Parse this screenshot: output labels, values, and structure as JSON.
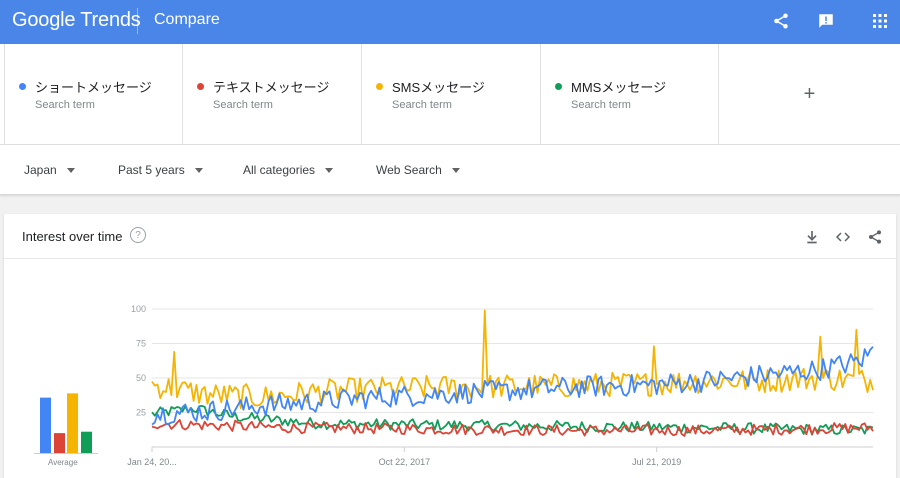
{
  "header": {
    "logo_text": "Google Trends",
    "title": "Compare",
    "bg_color": "#4a86e8",
    "icons": [
      "share-icon",
      "feedback-icon",
      "apps-icon"
    ]
  },
  "terms": [
    {
      "name": "ショートメッセージ",
      "sub": "Search term",
      "color": "#4285f4"
    },
    {
      "name": "テキストメッセージ",
      "sub": "Search term",
      "color": "#db4437"
    },
    {
      "name": "SMSメッセージ",
      "sub": "Search term",
      "color": "#f4b400"
    },
    {
      "name": "MMSメッセージ",
      "sub": "Search term",
      "color": "#0f9d58"
    }
  ],
  "add_term_label": "+",
  "filters": {
    "region": "Japan",
    "period": "Past 5 years",
    "category": "All categories",
    "property": "Web Search"
  },
  "card": {
    "title": "Interest over time",
    "help_label": "?",
    "avg_label": "Average"
  },
  "chart_data": {
    "type": "line",
    "y_ticks": [
      100,
      75,
      50,
      25
    ],
    "x_labels": [
      "Jan 24, 20...",
      "Oct 22, 2017",
      "Jul 21, 2019"
    ],
    "ylim": [
      0,
      100
    ],
    "n_points": 261,
    "averages": [
      39,
      14,
      42,
      15
    ],
    "series": [
      {
        "name": "ショートメッセージ",
        "color": "#4285f4",
        "anchors": [
          [
            0,
            24
          ],
          [
            20,
            26
          ],
          [
            40,
            30
          ],
          [
            60,
            33
          ],
          [
            80,
            36
          ],
          [
            100,
            38
          ],
          [
            120,
            40
          ],
          [
            140,
            42
          ],
          [
            160,
            44
          ],
          [
            180,
            45
          ],
          [
            200,
            48
          ],
          [
            220,
            52
          ],
          [
            240,
            56
          ],
          [
            255,
            62
          ],
          [
            260,
            70
          ]
        ],
        "jitter": 8
      },
      {
        "name": "テキストメッセージ",
        "color": "#db4437",
        "anchors": [
          [
            0,
            17
          ],
          [
            50,
            14
          ],
          [
            100,
            13
          ],
          [
            150,
            12
          ],
          [
            200,
            12
          ],
          [
            260,
            14
          ]
        ],
        "jitter": 4
      },
      {
        "name": "SMSメッセージ",
        "color": "#f4b400",
        "anchors": [
          [
            0,
            45
          ],
          [
            20,
            38
          ],
          [
            40,
            36
          ],
          [
            60,
            40
          ],
          [
            80,
            42
          ],
          [
            100,
            43
          ],
          [
            120,
            44
          ],
          [
            140,
            44
          ],
          [
            160,
            45
          ],
          [
            180,
            46
          ],
          [
            200,
            48
          ],
          [
            220,
            48
          ],
          [
            240,
            50
          ],
          [
            260,
            48
          ]
        ],
        "jitter": 9,
        "spikes": [
          [
            8,
            69
          ],
          [
            120,
            99
          ],
          [
            181,
            73
          ],
          [
            241,
            80
          ],
          [
            254,
            85
          ]
        ]
      },
      {
        "name": "MMSメッセージ",
        "color": "#0f9d58",
        "anchors": [
          [
            0,
            24
          ],
          [
            15,
            28
          ],
          [
            30,
            22
          ],
          [
            60,
            17
          ],
          [
            100,
            16
          ],
          [
            150,
            15
          ],
          [
            200,
            14
          ],
          [
            260,
            12
          ]
        ],
        "jitter": 4
      }
    ]
  }
}
